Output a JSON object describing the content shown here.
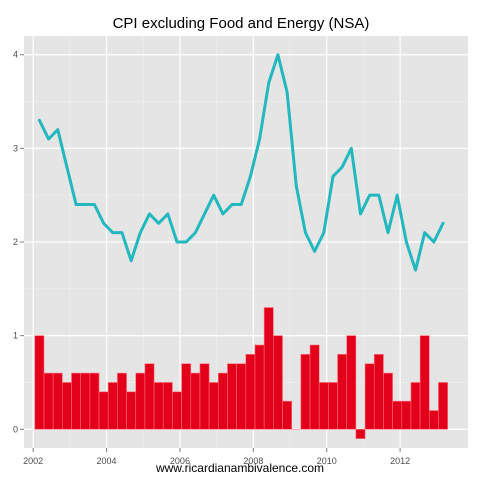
{
  "chart_data": {
    "type": "bar+line",
    "title": "CPI excluding Food and Energy (NSA)",
    "caption": "www.ricardianambivalence.com",
    "xlabel": "",
    "ylabel": "",
    "xlim": [
      2001.75,
      2013.85
    ],
    "ylim": [
      -0.2,
      4.2
    ],
    "x_ticks": [
      2002,
      2004,
      2006,
      2008,
      2010,
      2012
    ],
    "y_ticks": [
      0,
      1,
      2,
      3,
      4
    ],
    "grid": true,
    "legend": "none",
    "colors": {
      "panel": "#e5e5e5",
      "grid_major": "#ffffff",
      "grid_minor": "#f0f0f0",
      "line": "#22b8be",
      "bar_fill": "#e3001b",
      "bar_edge": "#ff6f78"
    },
    "series": [
      {
        "type": "line",
        "x": [
          2002.17,
          2002.42,
          2002.67,
          2002.92,
          2003.17,
          2003.42,
          2003.67,
          2003.92,
          2004.17,
          2004.42,
          2004.67,
          2004.92,
          2005.17,
          2005.42,
          2005.67,
          2005.92,
          2006.17,
          2006.42,
          2006.67,
          2006.92,
          2007.17,
          2007.42,
          2007.67,
          2007.92,
          2008.17,
          2008.42,
          2008.67,
          2008.92,
          2009.17,
          2009.42,
          2009.67,
          2009.92,
          2010.17,
          2010.42,
          2010.67,
          2010.92,
          2011.17,
          2011.42,
          2011.67,
          2011.92,
          2012.17,
          2012.42,
          2012.67,
          2012.92,
          2013.17
        ],
        "values": [
          3.3,
          3.1,
          3.2,
          2.8,
          2.4,
          2.4,
          2.4,
          2.2,
          2.1,
          2.1,
          1.8,
          2.1,
          2.3,
          2.2,
          2.3,
          2.0,
          2.0,
          2.1,
          2.3,
          2.5,
          2.3,
          2.4,
          2.4,
          2.7,
          3.1,
          3.7,
          4.0,
          3.6,
          2.6,
          2.1,
          1.9,
          2.1,
          2.7,
          2.8,
          3.0,
          2.3,
          2.5,
          2.5,
          2.1,
          2.5,
          2.0,
          1.7,
          2.1,
          2.0,
          2.2
        ]
      },
      {
        "type": "bar",
        "x": [
          2002.17,
          2002.42,
          2002.67,
          2002.92,
          2003.17,
          2003.42,
          2003.67,
          2003.92,
          2004.17,
          2004.42,
          2004.67,
          2004.92,
          2005.17,
          2005.42,
          2005.67,
          2005.92,
          2006.17,
          2006.42,
          2006.67,
          2006.92,
          2007.17,
          2007.42,
          2007.67,
          2007.92,
          2008.17,
          2008.42,
          2008.67,
          2008.92,
          2009.17,
          2009.42,
          2009.67,
          2009.92,
          2010.17,
          2010.42,
          2010.67,
          2010.92,
          2011.17,
          2011.42,
          2011.67,
          2011.92,
          2012.17,
          2012.42,
          2012.67,
          2012.92,
          2013.17
        ],
        "values": [
          1.0,
          0.6,
          0.6,
          0.5,
          0.6,
          0.6,
          0.6,
          0.4,
          0.5,
          0.6,
          0.4,
          0.6,
          0.7,
          0.5,
          0.5,
          0.4,
          0.7,
          0.6,
          0.7,
          0.5,
          0.6,
          0.7,
          0.7,
          0.8,
          0.9,
          1.3,
          1.0,
          0.3,
          0.0,
          0.8,
          0.9,
          0.5,
          0.5,
          0.8,
          1.0,
          -0.1,
          0.7,
          0.8,
          0.6,
          0.3,
          0.3,
          0.5,
          1.0,
          0.2,
          0.5
        ]
      }
    ]
  }
}
